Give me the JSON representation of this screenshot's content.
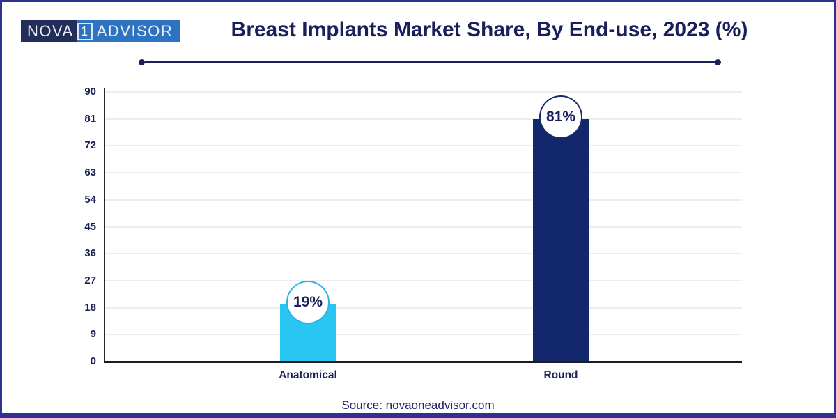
{
  "header": {
    "logo": {
      "nova": "NOVA",
      "one": "1",
      "advisor": "ADVISOR"
    },
    "title": "Breast Implants Market Share, By End-use, 2023 (%)"
  },
  "chart_data": {
    "type": "bar",
    "title": "Breast Implants Market Share, By End-use, 2023 (%)",
    "categories": [
      "Anatomical",
      "Round"
    ],
    "values": [
      19,
      81
    ],
    "labels": [
      "19%",
      "81%"
    ],
    "ylim": [
      0,
      90
    ],
    "yticks": [
      0,
      9,
      18,
      27,
      36,
      45,
      54,
      63,
      72,
      81,
      90
    ],
    "grid": true,
    "legend_position": "none",
    "xlabel": "",
    "ylabel": "",
    "bar_colors": [
      "#29c6f4",
      "#13276d"
    ],
    "badge_border_colors": [
      "#2ab4e8",
      "#1b2a6a"
    ],
    "badge_fill": "#ffffff",
    "value_text_color": "#1a1f5b"
  },
  "footer": {
    "source": "Source: novaoneadvisor.com"
  },
  "colors": {
    "accent_navy": "#1a1f5b",
    "frame": "#2e3192",
    "logo_dark": "#232d5a",
    "logo_blue": "#2d73c2",
    "cyan_bar": "#29c6f4",
    "navy_bar": "#13276d",
    "gridline": "#ededed",
    "axis": "#262626"
  }
}
